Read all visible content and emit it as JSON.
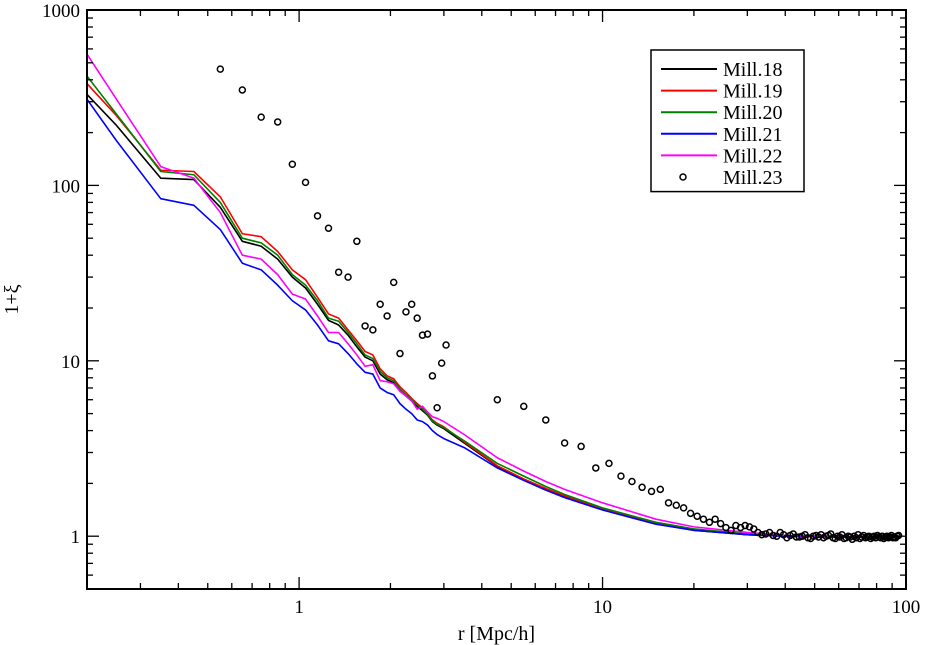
{
  "chart_data": {
    "type": "line",
    "title": "",
    "xlabel": "r [Mpc/h]",
    "ylabel": "1+ξ",
    "xscale": "log",
    "yscale": "log",
    "xlim": [
      0.2,
      100
    ],
    "ylim": [
      0.5,
      1000
    ],
    "xticks": [
      {
        "v": 1,
        "label": "1"
      },
      {
        "v": 10,
        "label": "10"
      },
      {
        "v": 100,
        "label": "100"
      }
    ],
    "yticks": [
      {
        "v": 1,
        "label": "1"
      },
      {
        "v": 10,
        "label": "10"
      },
      {
        "v": 100,
        "label": "100"
      },
      {
        "v": 1000,
        "label": "1000"
      }
    ],
    "grid": false,
    "legend_position": "top-right",
    "series": [
      {
        "name": "Mill.18",
        "color": "#000000",
        "style": "line",
        "x": [
          0.2,
          0.25,
          0.35,
          0.45,
          0.55,
          0.65,
          0.75,
          0.85,
          0.95,
          1.05,
          1.15,
          1.25,
          1.35,
          1.45,
          1.55,
          1.65,
          1.75,
          1.85,
          1.95,
          2.05,
          2.15,
          2.25,
          2.35,
          2.45,
          2.55,
          2.65,
          2.75,
          2.85,
          3.0,
          3.5,
          4.5,
          5.5,
          6.5,
          7.5,
          10,
          15,
          20,
          30,
          40,
          60,
          80,
          95
        ],
        "y": [
          330,
          220,
          110,
          108,
          75,
          48,
          45,
          38,
          30,
          26,
          21,
          17,
          16,
          14,
          12,
          10.5,
          10,
          8.4,
          7.8,
          7.5,
          6.8,
          6.3,
          5.9,
          5.5,
          5.2,
          4.9,
          4.5,
          4.3,
          4.1,
          3.4,
          2.5,
          2.1,
          1.85,
          1.68,
          1.42,
          1.18,
          1.08,
          1.02,
          1.0,
          0.99,
          0.99,
          0.99
        ]
      },
      {
        "name": "Mill.19",
        "color": "#ff0000",
        "style": "line",
        "x": [
          0.2,
          0.25,
          0.35,
          0.45,
          0.55,
          0.65,
          0.75,
          0.85,
          0.95,
          1.05,
          1.15,
          1.25,
          1.35,
          1.45,
          1.55,
          1.65,
          1.75,
          1.85,
          1.95,
          2.05,
          2.15,
          2.25,
          2.35,
          2.45,
          2.55,
          2.65,
          2.75,
          2.85,
          3.0,
          3.5,
          4.5,
          5.5,
          6.5,
          7.5,
          10,
          15,
          20,
          30,
          40,
          60,
          80,
          95
        ],
        "y": [
          380,
          250,
          122,
          120,
          86,
          53,
          51,
          42,
          33,
          29,
          23,
          18.5,
          17.5,
          15,
          13,
          11.3,
          10.8,
          9,
          8.2,
          7.9,
          7.1,
          6.6,
          6.1,
          5.7,
          5.4,
          5.0,
          4.6,
          4.4,
          4.2,
          3.45,
          2.52,
          2.12,
          1.87,
          1.7,
          1.43,
          1.19,
          1.09,
          1.02,
          1.0,
          0.99,
          0.99,
          0.99
        ]
      },
      {
        "name": "Mill.20",
        "color": "#008000",
        "style": "line",
        "x": [
          0.2,
          0.25,
          0.35,
          0.45,
          0.55,
          0.65,
          0.75,
          0.85,
          0.95,
          1.05,
          1.15,
          1.25,
          1.35,
          1.45,
          1.55,
          1.65,
          1.75,
          1.85,
          1.95,
          2.05,
          2.15,
          2.25,
          2.35,
          2.45,
          2.55,
          2.65,
          2.75,
          2.85,
          3.0,
          3.5,
          4.5,
          5.5,
          6.5,
          7.5,
          10,
          15,
          20,
          30,
          40,
          60,
          80,
          95
        ],
        "y": [
          420,
          255,
          120,
          115,
          80,
          50,
          47,
          40,
          31,
          27,
          22,
          17.5,
          16.8,
          14.5,
          12.5,
          10.8,
          10.3,
          8.7,
          8.0,
          7.7,
          6.9,
          6.4,
          6.0,
          5.6,
          5.3,
          4.95,
          4.55,
          4.35,
          4.15,
          3.5,
          2.6,
          2.2,
          1.92,
          1.73,
          1.45,
          1.2,
          1.1,
          1.03,
          1.0,
          0.99,
          0.99,
          0.99
        ]
      },
      {
        "name": "Mill.21",
        "color": "#0000ff",
        "style": "line",
        "x": [
          0.2,
          0.25,
          0.35,
          0.45,
          0.55,
          0.65,
          0.75,
          0.85,
          0.95,
          1.05,
          1.15,
          1.25,
          1.35,
          1.45,
          1.55,
          1.65,
          1.75,
          1.85,
          1.95,
          2.05,
          2.15,
          2.25,
          2.35,
          2.45,
          2.55,
          2.65,
          2.75,
          2.85,
          3.0,
          3.5,
          4.5,
          5.5,
          6.5,
          7.5,
          10,
          15,
          20,
          30,
          40,
          60,
          80,
          95
        ],
        "y": [
          310,
          180,
          84,
          77,
          56,
          36,
          33,
          27,
          22,
          19.5,
          16,
          13,
          12.5,
          11,
          9.6,
          8.6,
          8.4,
          7,
          6.6,
          6.4,
          5.7,
          5.3,
          5.0,
          4.6,
          4.5,
          4.3,
          4.0,
          3.8,
          3.6,
          3.2,
          2.45,
          2.08,
          1.83,
          1.66,
          1.41,
          1.17,
          1.08,
          1.02,
          1.0,
          0.99,
          0.99,
          0.99
        ]
      },
      {
        "name": "Mill.22",
        "color": "#ff00ff",
        "style": "line",
        "x": [
          0.2,
          0.25,
          0.35,
          0.45,
          0.55,
          0.65,
          0.75,
          0.85,
          0.95,
          1.05,
          1.15,
          1.25,
          1.35,
          1.45,
          1.55,
          1.65,
          1.75,
          1.85,
          1.95,
          2.05,
          2.15,
          2.25,
          2.35,
          2.45,
          2.55,
          2.65,
          2.75,
          2.85,
          3.0,
          3.5,
          4.5,
          5.5,
          6.5,
          7.5,
          10,
          15,
          20,
          30,
          40,
          60,
          80,
          95
        ],
        "y": [
          560,
          310,
          128,
          110,
          70,
          40,
          38,
          31,
          24,
          22.5,
          18,
          14.5,
          14.5,
          12.5,
          10.8,
          9.3,
          9.5,
          7.7,
          7.6,
          7.4,
          6.7,
          6.3,
          5.9,
          5.3,
          5.5,
          5.1,
          4.8,
          4.7,
          4.5,
          3.8,
          2.8,
          2.35,
          2.05,
          1.85,
          1.55,
          1.25,
          1.13,
          1.05,
          1.01,
          1.0,
          0.99,
          0.99
        ]
      },
      {
        "name": "Mill.23",
        "color": "#000000",
        "style": "circles",
        "x": [
          0.55,
          0.65,
          0.75,
          0.85,
          0.95,
          1.05,
          1.15,
          1.25,
          1.35,
          1.45,
          1.55,
          1.65,
          1.75,
          1.85,
          1.95,
          2.05,
          2.15,
          2.25,
          2.35,
          2.45,
          2.55,
          2.65,
          2.75,
          2.85,
          2.95,
          3.05,
          4.5,
          5.5,
          6.5,
          7.5,
          8.5,
          9.5,
          10.5,
          11.5,
          12.5,
          13.5,
          14.5,
          15.5,
          16.5,
          17.5,
          18.5,
          19.5,
          20.5,
          21.5,
          22.5,
          23.5,
          24.5,
          25.5,
          26.5,
          27.5,
          28.5,
          29.5,
          30.5,
          31.5,
          32.5,
          33.5,
          34.5,
          35.5,
          36.5,
          37.5,
          38.5,
          39.5,
          40.5,
          41.5,
          42.5,
          43.5,
          44.5,
          45.5,
          46.5,
          47.5,
          48.5,
          49.5,
          50.5,
          51.5,
          52.5,
          53.5,
          54.5,
          55.5,
          56.5,
          57.5,
          58.5,
          59.5,
          60.5,
          61.5,
          62.5,
          63.5,
          64.5,
          65.5,
          66.5,
          67.5,
          68.5,
          69.5,
          70.5,
          71.5,
          72.5,
          73.5,
          74.5,
          75.5,
          76.5,
          77.5,
          78.5,
          79.5,
          80.5,
          81.5,
          82.5,
          83.5,
          84.5,
          85.5,
          86.5,
          87.5,
          88.5,
          89.5,
          90.5,
          91.5,
          92.5,
          93.5,
          94.5
        ],
        "y": [
          460,
          350,
          245,
          230,
          132,
          104,
          67,
          57,
          32,
          30,
          48,
          15.8,
          15,
          21,
          18,
          28,
          11,
          19,
          21,
          17.5,
          14,
          14.2,
          8.2,
          5.4,
          9.7,
          12.3,
          6.0,
          5.5,
          4.6,
          3.4,
          3.25,
          2.45,
          2.6,
          2.2,
          2.05,
          1.9,
          1.8,
          1.85,
          1.55,
          1.5,
          1.45,
          1.35,
          1.3,
          1.25,
          1.2,
          1.25,
          1.18,
          1.12,
          1.08,
          1.15,
          1.12,
          1.15,
          1.13,
          1.1,
          1.05,
          1.02,
          1.03,
          1.05,
          1.01,
          1.0,
          1.05,
          1.02,
          0.98,
          1.01,
          1.03,
          0.99,
          0.99,
          1.0,
          1.02,
          0.98,
          0.97,
          1.0,
          1.01,
          0.99,
          1.02,
          0.98,
          1.0,
          1.01,
          1.03,
          0.98,
          0.97,
          1.0,
          0.99,
          1.02,
          0.97,
          0.98,
          1.0,
          0.99,
          0.96,
          1.0,
          0.98,
          1.02,
          0.97,
          0.99,
          1.01,
          0.98,
          0.99,
          1.0,
          0.97,
          0.99,
          1.0,
          0.98,
          1.01,
          0.99,
          0.98,
          1.0,
          0.97,
          0.99,
          1.0,
          0.98,
          0.99,
          1.01,
          0.98,
          0.99,
          0.98,
          1.0,
          1.01
        ]
      }
    ]
  }
}
